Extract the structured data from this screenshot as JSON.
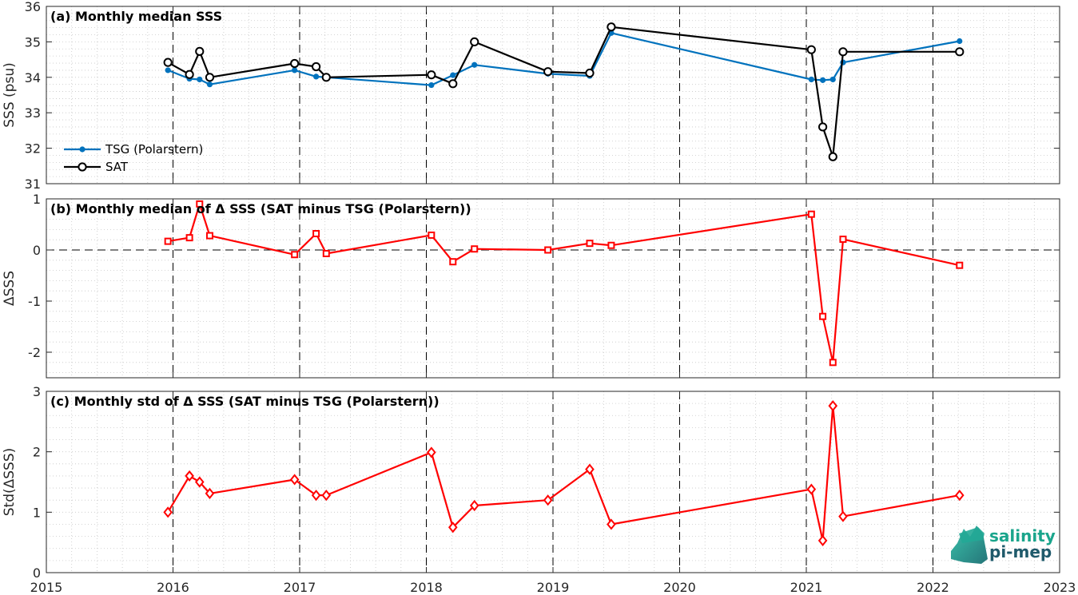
{
  "figure": {
    "logo": {
      "line1": "salinity",
      "line2": "pi-mep",
      "color1": "#1aa58c",
      "color2": "#1f5a6b"
    }
  },
  "colors": {
    "tsg": "#0072BD",
    "sat": "#000000",
    "delta": "#ff0000"
  },
  "chart_data": [
    {
      "type": "line",
      "title": "(a) Monthly median SSS",
      "xlabel": "",
      "ylabel": "SSS (psu)",
      "xlim": [
        2015,
        2023
      ],
      "ylim": [
        31,
        36
      ],
      "x_ticks": [
        "2015",
        "2016",
        "2017",
        "2018",
        "2019",
        "2020",
        "2021",
        "2022",
        "2023"
      ],
      "y_ticks": [
        "31",
        "32",
        "33",
        "34",
        "35",
        "36"
      ],
      "grid": true,
      "legend_position": "lower-left",
      "series": [
        {
          "name": "TSG (Polarstern)",
          "marker": "dot",
          "color": "#0072BD",
          "x": [
            2015.96,
            2016.13,
            2016.21,
            2016.29,
            2016.96,
            2017.13,
            2017.21,
            2018.04,
            2018.21,
            2018.38,
            2018.96,
            2019.29,
            2019.46,
            2021.04,
            2021.13,
            2021.21,
            2021.29,
            2022.21
          ],
          "y": [
            34.2,
            33.96,
            33.94,
            33.8,
            34.2,
            34.02,
            34.0,
            33.78,
            34.06,
            34.35,
            34.1,
            34.04,
            35.25,
            33.94,
            33.92,
            33.94,
            34.42,
            35.02
          ]
        },
        {
          "name": "SAT",
          "marker": "circle",
          "color": "#000000",
          "x": [
            2015.96,
            2016.13,
            2016.21,
            2016.29,
            2016.96,
            2017.13,
            2017.21,
            2018.04,
            2018.21,
            2018.38,
            2018.96,
            2019.29,
            2019.46,
            2021.04,
            2021.13,
            2021.21,
            2021.29,
            2022.21
          ],
          "y": [
            34.42,
            34.08,
            34.73,
            34.0,
            34.39,
            34.3,
            34.0,
            34.07,
            33.82,
            35.0,
            34.16,
            34.12,
            35.42,
            34.78,
            32.6,
            31.76,
            34.72,
            34.72
          ]
        }
      ]
    },
    {
      "type": "line",
      "title": "(b) Monthly median of Δ SSS (SAT minus TSG (Polarstern))",
      "xlabel": "",
      "ylabel": "ΔSSS",
      "xlim": [
        2015,
        2023
      ],
      "ylim": [
        -2.5,
        1
      ],
      "x_ticks": [
        "2015",
        "2016",
        "2017",
        "2018",
        "2019",
        "2020",
        "2021",
        "2022",
        "2023"
      ],
      "y_ticks": [
        "-2",
        "-1",
        "0",
        "1"
      ],
      "grid": true,
      "zero_line": true,
      "series": [
        {
          "marker": "square",
          "color": "#ff0000",
          "x": [
            2015.96,
            2016.13,
            2016.21,
            2016.29,
            2016.96,
            2017.13,
            2017.21,
            2018.04,
            2018.21,
            2018.38,
            2018.96,
            2019.29,
            2019.46,
            2021.04,
            2021.13,
            2021.21,
            2021.29,
            2022.21
          ],
          "y": [
            0.17,
            0.24,
            0.9,
            0.28,
            -0.09,
            0.32,
            -0.07,
            0.29,
            -0.23,
            0.02,
            0.0,
            0.13,
            0.09,
            0.7,
            -1.3,
            -2.2,
            0.21,
            -0.3
          ]
        }
      ]
    },
    {
      "type": "line",
      "title": "(c) Monthly std of Δ SSS (SAT minus TSG (Polarstern))",
      "xlabel": "",
      "ylabel": "Std(ΔSSS)",
      "xlim": [
        2015,
        2023
      ],
      "ylim": [
        0,
        3
      ],
      "x_ticks": [
        "2015",
        "2016",
        "2017",
        "2018",
        "2019",
        "2020",
        "2021",
        "2022",
        "2023"
      ],
      "y_ticks": [
        "0",
        "1",
        "2",
        "3"
      ],
      "grid": true,
      "series": [
        {
          "marker": "diamond",
          "color": "#ff0000",
          "x": [
            2015.96,
            2016.13,
            2016.21,
            2016.29,
            2016.96,
            2017.13,
            2017.21,
            2018.04,
            2018.21,
            2018.38,
            2018.96,
            2019.29,
            2019.46,
            2021.04,
            2021.13,
            2021.21,
            2021.29,
            2022.21
          ],
          "y": [
            1.0,
            1.6,
            1.5,
            1.31,
            1.54,
            1.28,
            1.28,
            1.99,
            0.75,
            1.11,
            1.2,
            1.71,
            0.8,
            1.38,
            0.53,
            2.76,
            0.93,
            1.28
          ]
        }
      ]
    }
  ]
}
